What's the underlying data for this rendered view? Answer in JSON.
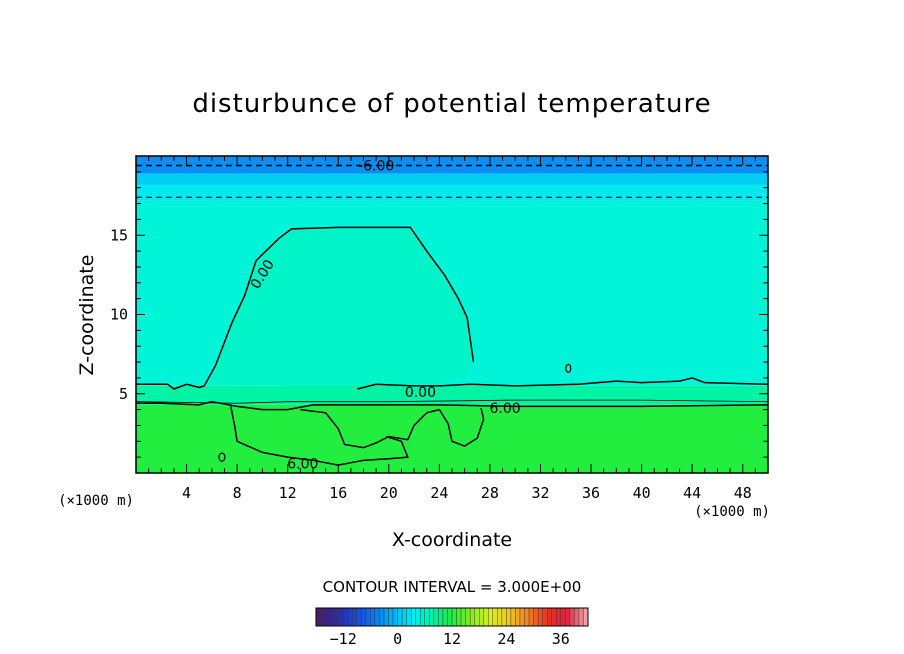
{
  "chart_data": {
    "type": "heatmap",
    "title": "disturbunce of potential temperature",
    "xlabel": "X-coordinate",
    "ylabel": "Z-coordinate",
    "x_unit": "(×1000 m)",
    "y_unit": "(×1000 m)",
    "xlim": [
      0,
      50
    ],
    "ylim": [
      0,
      20
    ],
    "x_ticks": [
      4,
      8,
      12,
      16,
      20,
      24,
      28,
      32,
      36,
      40,
      44,
      48
    ],
    "y_ticks": [
      5,
      10,
      15
    ],
    "contour_interval_text": "CONTOUR INTERVAL = 3.000E+00",
    "contour_labels": [
      {
        "text": "-6.00",
        "x": 19,
        "y": 19.4
      },
      {
        "text": "0.00",
        "x": 10.3,
        "y": 12.7
      },
      {
        "text": "0.00",
        "x": 22.5,
        "y": 5.1
      },
      {
        "text": "6.00",
        "x": 29.2,
        "y": 4.1
      },
      {
        "text": "6.00",
        "x": 13.2,
        "y": 0.6
      }
    ],
    "fill_bands": [
      {
        "zmin": 0,
        "zmax": 4.3,
        "value": 9,
        "color": "#22ee3f"
      },
      {
        "zmin": 4.3,
        "zmax": 5.5,
        "value": 3,
        "color": "#00f4a4"
      },
      {
        "zmin": 5.5,
        "zmax": 17.2,
        "value": 0,
        "color": "#00f4d8"
      },
      {
        "zmin": 17.2,
        "zmax": 18.2,
        "value": -3,
        "color": "#00e8f0"
      },
      {
        "zmin": 18.2,
        "zmax": 18.9,
        "value": -4.5,
        "color": "#00ccf4"
      },
      {
        "zmin": 18.9,
        "zmax": 20,
        "value": -6,
        "color": "#0b8ef4"
      }
    ],
    "warm_bubble_value": 1.5,
    "colorbar": {
      "min": -18,
      "max": 42,
      "ticks": [
        -12,
        0,
        12,
        24,
        36
      ],
      "tick_labels": [
        "−12",
        "0",
        "12",
        "24",
        "36"
      ],
      "colors": [
        "#4a1c6e",
        "#2c2c9e",
        "#1c48d4",
        "#0a7cf0",
        "#00b8f4",
        "#00f0f0",
        "#00f0a8",
        "#20ec40",
        "#88ec20",
        "#d8f020",
        "#f0c820",
        "#f08020",
        "#e83020",
        "#e02040",
        "#f0a0a0"
      ]
    }
  }
}
